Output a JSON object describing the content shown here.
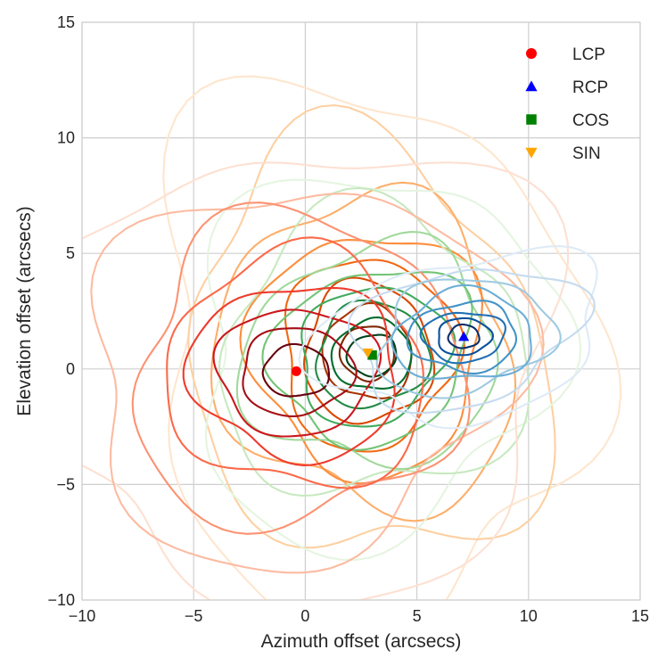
{
  "chart_data": {
    "type": "scatter",
    "title": "",
    "xlabel": "Azimuth offset (arcsecs)",
    "ylabel": "Elevation offset (arcsecs)",
    "xlim": [
      -10,
      15
    ],
    "ylim": [
      -10,
      15
    ],
    "xticks": [
      -10,
      -5,
      0,
      5,
      10,
      15
    ],
    "yticks": [
      -10,
      -5,
      0,
      5,
      10,
      15
    ],
    "xtick_labels": [
      "−10",
      "−5",
      "0",
      "5",
      "10",
      "15"
    ],
    "ytick_labels": [
      "−10",
      "−5",
      "0",
      "5",
      "10",
      "15"
    ],
    "grid": true,
    "legend_position": "top-right",
    "series": [
      {
        "name": "LCP",
        "marker": "circle",
        "color": "#ff0000",
        "x": -0.4,
        "y": -0.1,
        "contours": {
          "colormap": [
            "#fde0d2",
            "#fcbba1",
            "#fc9272",
            "#fb6a4a",
            "#ef3b2c",
            "#cb181d",
            "#a50f15",
            "#67000d"
          ],
          "sx": [
            11.6,
            9.4,
            7.5,
            5.9,
            4.6,
            3.5,
            2.5,
            1.5
          ],
          "sy": [
            10.2,
            8.2,
            6.5,
            5.0,
            3.8,
            2.8,
            1.9,
            1.1
          ],
          "rotation_deg": [
            8,
            6,
            4,
            2,
            0,
            0,
            0,
            0
          ]
        }
      },
      {
        "name": "RCP",
        "marker": "triangle-up",
        "color": "#0000ff",
        "x": 7.1,
        "y": 1.4,
        "contours": {
          "colormap": [
            "#deebf7",
            "#c6dbef",
            "#9ecae1",
            "#6baed6",
            "#4292c6",
            "#2171b5",
            "#08519c",
            "#08306b"
          ],
          "sx": [
            6.2,
            5.0,
            4.0,
            3.2,
            2.4,
            1.8,
            1.2,
            0.7
          ],
          "sy": [
            3.6,
            3.0,
            2.4,
            1.9,
            1.5,
            1.1,
            0.8,
            0.5
          ],
          "rotation_deg": [
            12,
            10,
            8,
            6,
            4,
            2,
            0,
            0
          ]
        }
      },
      {
        "name": "COS",
        "marker": "square",
        "color": "#008000",
        "x": 3.0,
        "y": 0.6,
        "contours": {
          "colormap": [
            "#e5f5e0",
            "#c7e9c0",
            "#a1d99b",
            "#74c476",
            "#41ab5d",
            "#238b45",
            "#006d2c",
            "#00441b"
          ],
          "sx": [
            8.6,
            7.0,
            5.6,
            4.4,
            3.4,
            2.6,
            1.8,
            1.1
          ],
          "sy": [
            7.4,
            6.0,
            4.8,
            3.8,
            2.9,
            2.2,
            1.5,
            0.9
          ],
          "rotation_deg": [
            25,
            22,
            20,
            18,
            16,
            14,
            12,
            10
          ]
        }
      },
      {
        "name": "SIN",
        "marker": "triangle-down",
        "color": "#ffa500",
        "x": 2.8,
        "y": 0.7,
        "contours": {
          "colormap": [
            "#fee6ce",
            "#fdd0a2",
            "#fdae6b",
            "#fd8d3c",
            "#f16913",
            "#d94801",
            "#a63603",
            "#7f2704"
          ],
          "sx": [
            10.0,
            8.0,
            6.4,
            5.0,
            3.9,
            2.9,
            2.0,
            1.2
          ],
          "sy": [
            11.4,
            9.0,
            7.0,
            5.4,
            4.1,
            3.0,
            2.0,
            1.2
          ],
          "rotation_deg": [
            20,
            18,
            16,
            14,
            12,
            10,
            8,
            6
          ]
        }
      }
    ]
  }
}
